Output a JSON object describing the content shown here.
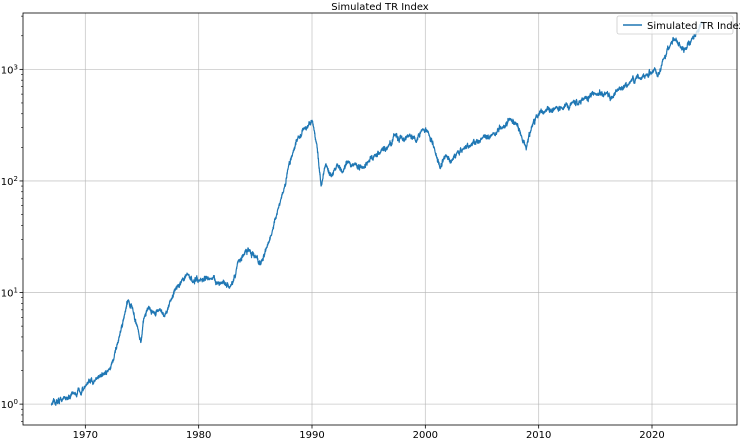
{
  "chart_data": {
    "type": "line",
    "title": "Simulated TR Index",
    "xlabel": "",
    "ylabel": "",
    "yscale": "log",
    "xlim": [
      1964.5,
      2027.5
    ],
    "ylim": [
      0.65,
      3200
    ],
    "grid": true,
    "legend": {
      "position": "top-right",
      "entries": [
        "Simulated TR Index"
      ]
    },
    "x_ticks": [
      1970,
      1980,
      1990,
      2000,
      2010,
      2020
    ],
    "x_tick_labels": [
      "1970",
      "1980",
      "1990",
      "2000",
      "2010",
      "2020"
    ],
    "y_ticks": [
      1,
      10,
      100,
      1000
    ],
    "y_tick_labels": [
      {
        "base": "10",
        "exp": "0"
      },
      {
        "base": "10",
        "exp": "1"
      },
      {
        "base": "10",
        "exp": "2"
      },
      {
        "base": "10",
        "exp": "3"
      }
    ],
    "series": [
      {
        "name": "Simulated TR Index",
        "color": "#1f77b4",
        "x": [
          1967.0,
          1968.0,
          1969.0,
          1969.5,
          1970.0,
          1971.0,
          1972.0,
          1972.5,
          1973.0,
          1973.5,
          1973.8,
          1974.2,
          1974.6,
          1974.9,
          1975.2,
          1975.6,
          1976.0,
          1976.5,
          1977.0,
          1977.5,
          1978.0,
          1978.5,
          1979.0,
          1979.5,
          1980.0,
          1981.0,
          1982.0,
          1982.8,
          1983.5,
          1984.0,
          1984.5,
          1985.0,
          1985.5,
          1986.0,
          1986.5,
          1987.0,
          1987.5,
          1987.9,
          1988.3,
          1988.8,
          1989.3,
          1989.7,
          1990.0,
          1990.4,
          1990.8,
          1991.2,
          1991.7,
          1992.2,
          1992.7,
          1993.2,
          1993.7,
          1994.5,
          1995.0,
          1995.5,
          1996.0,
          1996.7,
          1997.3,
          1998.0,
          1998.6,
          1999.2,
          1999.8,
          2000.3,
          2000.8,
          2001.3,
          2001.8,
          2002.3,
          2002.8,
          2003.3,
          2004.0,
          2005.0,
          2006.0,
          2006.8,
          2007.5,
          2008.0,
          2008.5,
          2008.9,
          2009.3,
          2009.8,
          2010.5,
          2011.5,
          2012.0,
          2013.0,
          2014.0,
          2015.0,
          2016.0,
          2016.5,
          2017.0,
          2018.0,
          2018.9,
          2019.5,
          2020.0,
          2020.2,
          2020.5,
          2021.0,
          2021.6,
          2022.0,
          2022.5,
          2023.0,
          2023.5,
          2024.0,
          2024.5
        ],
        "values": [
          1.0,
          1.1,
          1.25,
          1.3,
          1.45,
          1.7,
          2.0,
          2.5,
          4.0,
          6.5,
          8.5,
          7.0,
          5.0,
          3.5,
          6.0,
          7.5,
          6.5,
          7.0,
          6.0,
          8.5,
          11.0,
          13.0,
          14.5,
          12.5,
          13.0,
          13.5,
          12.0,
          11.0,
          19.0,
          22.0,
          24.0,
          21.0,
          18.0,
          25.0,
          35.0,
          55.0,
          80.0,
          130.0,
          180.0,
          250.0,
          290.0,
          320.0,
          350.0,
          220.0,
          90.0,
          140.0,
          110.0,
          140.0,
          120.0,
          150.0,
          140.0,
          130.0,
          150.0,
          170.0,
          180.0,
          200.0,
          260.0,
          230.0,
          260.0,
          230.0,
          300.0,
          260.0,
          200.0,
          130.0,
          170.0,
          150.0,
          180.0,
          190.0,
          210.0,
          240.0,
          270.0,
          300.0,
          360.0,
          330.0,
          250.0,
          190.0,
          280.0,
          380.0,
          420.0,
          450.0,
          450.0,
          500.0,
          550.0,
          600.0,
          600.0,
          560.0,
          650.0,
          750.0,
          850.0,
          900.0,
          950.0,
          1000.0,
          850.0,
          1200.0,
          1700.0,
          1850.0,
          1600.0,
          1500.0,
          1900.0,
          2200.0,
          2600.0
        ]
      }
    ]
  }
}
